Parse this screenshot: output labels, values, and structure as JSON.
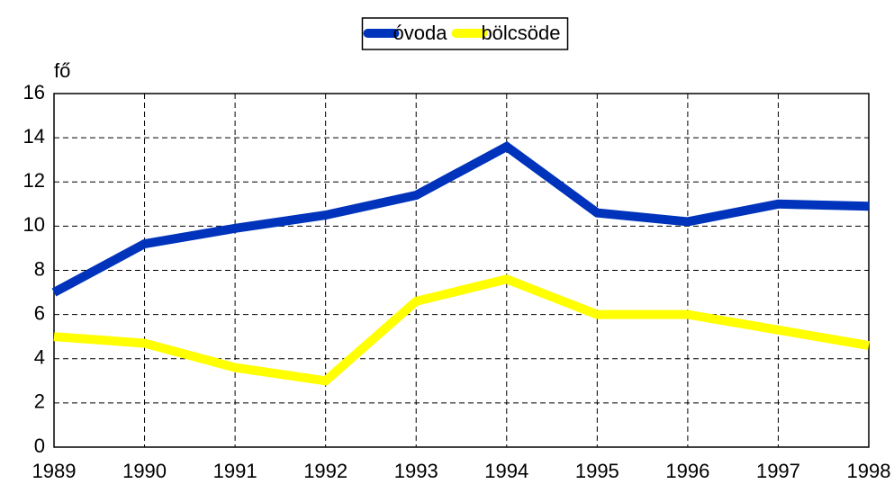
{
  "chart_data": {
    "type": "line",
    "y_label": "fő",
    "x": [
      1989,
      1990,
      1991,
      1992,
      1993,
      1994,
      1995,
      1996,
      1997,
      1998
    ],
    "xlim": [
      1989,
      1998
    ],
    "xticks": [
      1989,
      1990,
      1991,
      1992,
      1993,
      1994,
      1995,
      1996,
      1997,
      1998
    ],
    "ylim": [
      0,
      16
    ],
    "yticks": [
      0,
      2,
      4,
      6,
      8,
      10,
      12,
      14,
      16
    ],
    "grid": true,
    "legend": "top",
    "series": [
      {
        "name": "óvoda",
        "color": "#0033bb",
        "values": [
          7.0,
          9.2,
          9.9,
          10.5,
          11.4,
          13.6,
          10.6,
          10.2,
          11.0,
          10.9
        ]
      },
      {
        "name": "bölcsöde",
        "color": "#ffff00",
        "values": [
          5.0,
          4.7,
          3.6,
          3.0,
          6.6,
          7.6,
          6.0,
          6.0,
          5.3,
          4.6
        ]
      }
    ]
  }
}
